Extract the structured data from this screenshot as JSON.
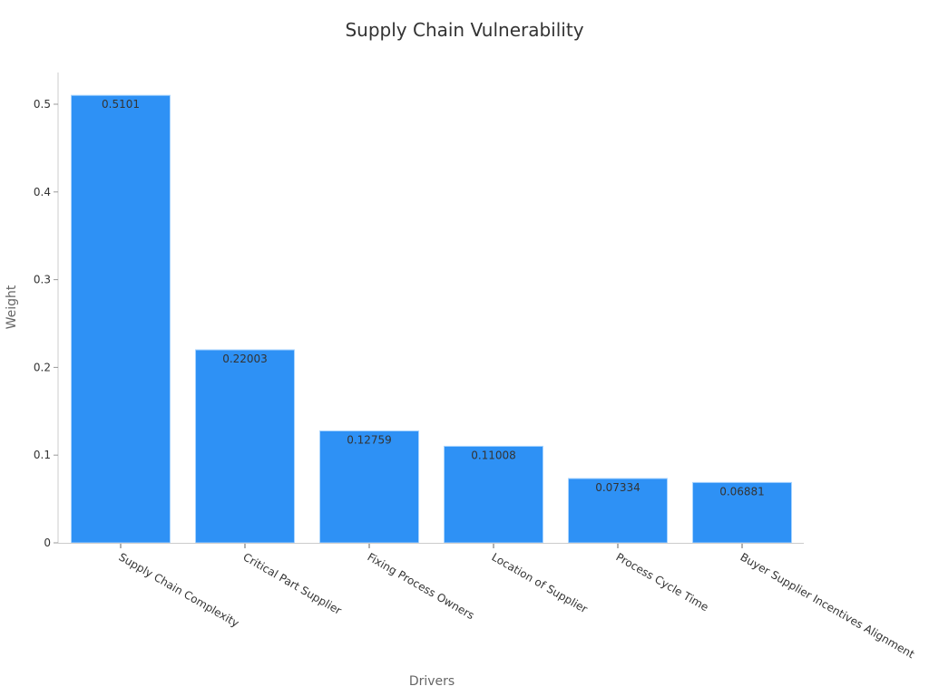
{
  "chart_data": {
    "type": "bar",
    "title": "Supply Chain Vulnerability",
    "xlabel": "Drivers",
    "ylabel": "Weight",
    "categories": [
      "Supply Chain Complexity",
      "Critical Part Supplier",
      "Fixing Process Owners",
      "Location of Supplier",
      "Process Cycle Time",
      "Buyer Supplier Incentives Alignment"
    ],
    "values": [
      0.5101,
      0.22003,
      0.12759,
      0.11008,
      0.07334,
      0.06881
    ],
    "data_labels": [
      "0.5101",
      "0.22003",
      "0.12759",
      "0.11008",
      "0.07334",
      "0.06881"
    ],
    "ylim": [
      0,
      0.536
    ],
    "yticks": [
      0,
      0.1,
      0.2,
      0.3,
      0.4,
      0.5
    ],
    "ytick_labels": [
      "0",
      "0.1",
      "0.2",
      "0.3",
      "0.4",
      "0.5"
    ],
    "grid": false,
    "legend": null,
    "colors": {
      "bar": "#2e91f5",
      "bar_edge": "#a8d4ff",
      "axis": "#cccccc"
    }
  }
}
